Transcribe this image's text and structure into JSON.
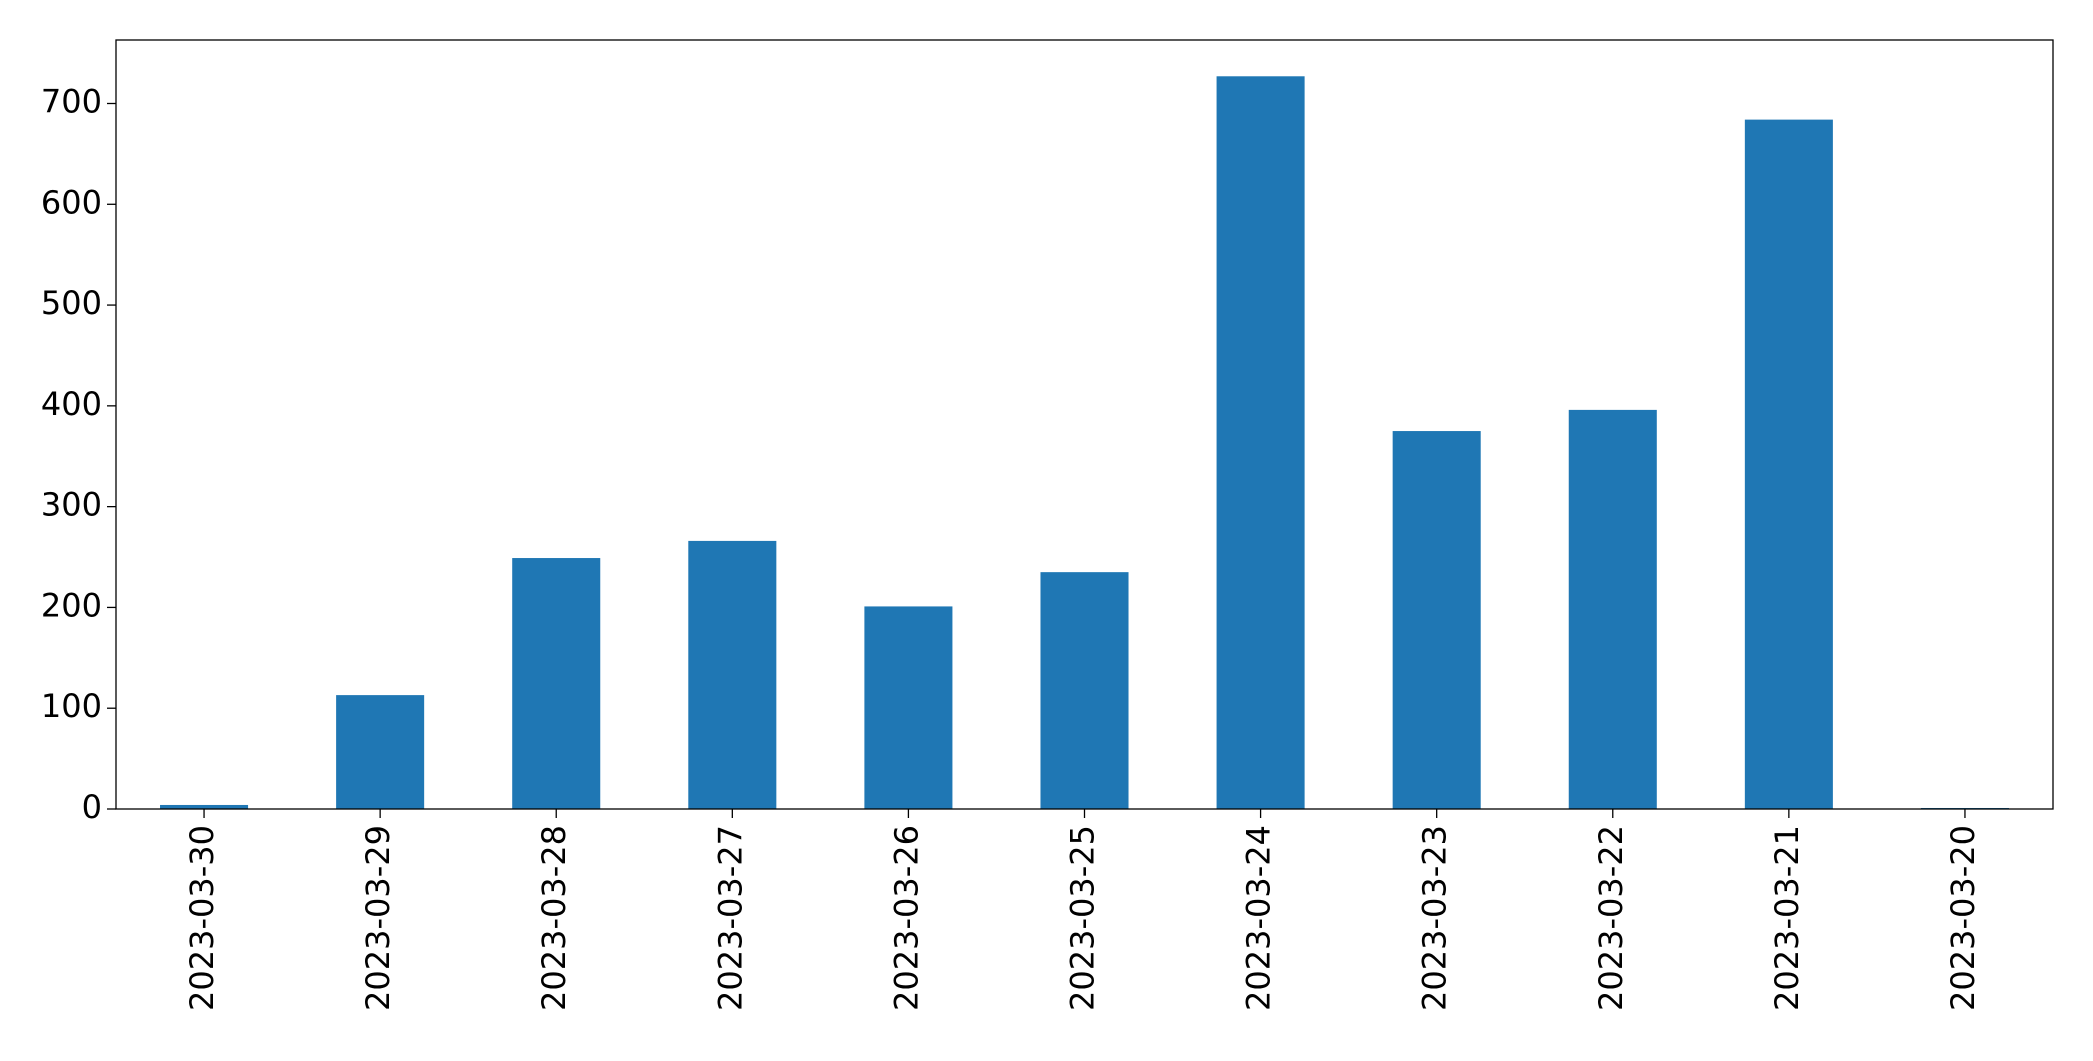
{
  "chart_data": {
    "type": "bar",
    "categories": [
      "2023-03-30",
      "2023-03-29",
      "2023-03-28",
      "2023-03-27",
      "2023-03-26",
      "2023-03-25",
      "2023-03-24",
      "2023-03-23",
      "2023-03-22",
      "2023-03-21",
      "2023-03-20"
    ],
    "values": [
      4,
      113,
      249,
      266,
      201,
      235,
      727,
      375,
      396,
      684,
      1
    ],
    "color": "#1f77b4",
    "ylim": [
      0,
      763
    ],
    "yticks": [
      0,
      100,
      200,
      300,
      400,
      500,
      600,
      700
    ],
    "grid": false
  }
}
